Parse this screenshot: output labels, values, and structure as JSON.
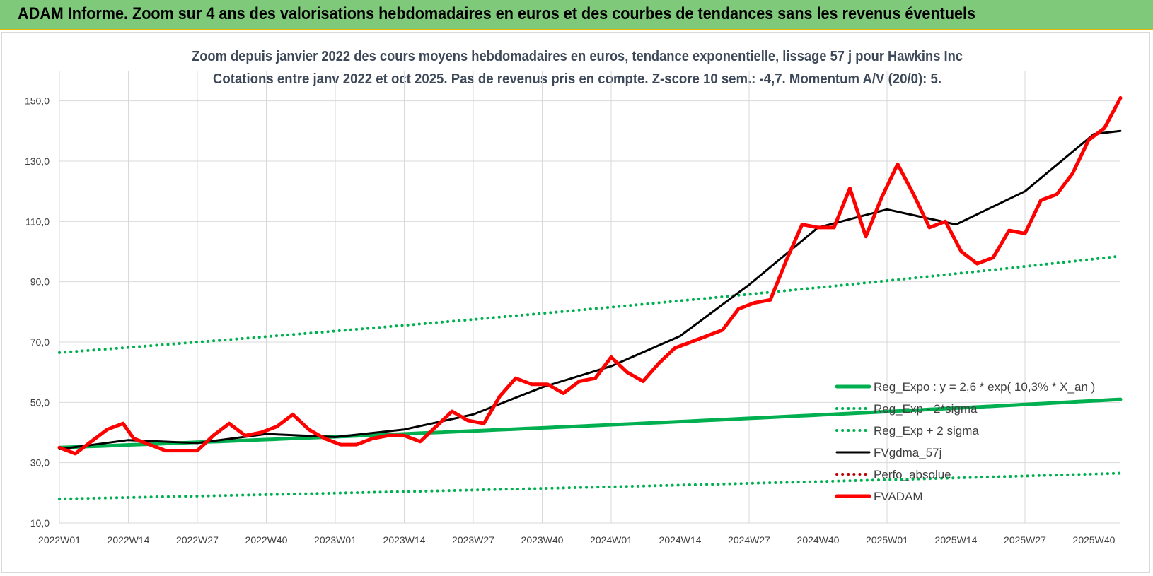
{
  "header": {
    "title": "ADAM Informe. Zoom sur 4 ans des valorisations hebdomadaires en euros et des courbes de tendances sans les revenus éventuels"
  },
  "colors": {
    "trend": "#00b050",
    "price": "#ff0000",
    "smooth": "#000000",
    "perf": "#c00000",
    "banner": "#7fc97a"
  },
  "chart_data": {
    "type": "line",
    "title": "Zoom depuis janvier 2022 des cours moyens hebdomadaires en euros, tendance exponentielle, lissage 57 j pour Hawkins Inc",
    "subtitle": "Cotations entre janv 2022 et oct 2025. Pas de revenus pris en compte. Z-score 10 sem.: -4,7.  Momentum A/V (20/0): 5.",
    "y_ticks": [
      "10,0",
      "30,0",
      "50,0",
      "70,0",
      "90,0",
      "110,0",
      "130,0",
      "150,0"
    ],
    "ylim": [
      10,
      160
    ],
    "x_tick_labels": [
      "2022W01",
      "2022W14",
      "2022W27",
      "2022W40",
      "2023W01",
      "2023W14",
      "2023W27",
      "2023W40",
      "2024W01",
      "2024W14",
      "2024W27",
      "2024W40",
      "2025W01",
      "2025W14",
      "2025W27",
      "2025W40"
    ],
    "x_range_weeks": [
      0,
      200
    ],
    "grid": "vertical and horizontal",
    "legend_position": "bottom-right",
    "series": [
      {
        "name": "Reg_Expo : y = 2,6 * exp( 10,3% * X_an )",
        "style": "solid-thick",
        "color": "#00b050",
        "x": [
          0,
          200
        ],
        "y": [
          35.0,
          51.0
        ]
      },
      {
        "name": "Reg_Exp - 2*sigma",
        "style": "dotted",
        "color": "#00b050",
        "x": [
          0,
          200
        ],
        "y": [
          18.0,
          26.5
        ]
      },
      {
        "name": "Reg_Exp + 2 sigma",
        "style": "dotted",
        "color": "#00b050",
        "x": [
          0,
          200
        ],
        "y": [
          66.5,
          98.5
        ]
      },
      {
        "name": "FVgdma_57j",
        "style": "solid",
        "color": "#000000",
        "x": [
          0,
          13,
          26,
          39,
          52,
          65,
          78,
          91,
          104,
          117,
          130,
          143,
          156,
          169,
          182,
          195,
          200
        ],
        "y": [
          34.5,
          37.5,
          36.5,
          39.5,
          38.5,
          41.0,
          46.0,
          55.0,
          62.0,
          72.0,
          89.0,
          108.0,
          114.0,
          109.0,
          120.0,
          139.0,
          140.0
        ]
      },
      {
        "name": "Perfo_absolue",
        "style": "dotted",
        "color": "#c00000",
        "x": [],
        "y": []
      },
      {
        "name": "FVADAM",
        "style": "solid-thick",
        "color": "#ff0000",
        "x": [
          0,
          3,
          6,
          9,
          12,
          14,
          17,
          20,
          23,
          26,
          29,
          32,
          35,
          38,
          41,
          44,
          47,
          50,
          53,
          56,
          59,
          62,
          65,
          68,
          71,
          74,
          77,
          80,
          83,
          86,
          89,
          92,
          95,
          98,
          101,
          104,
          107,
          110,
          113,
          116,
          119,
          122,
          125,
          128,
          131,
          134,
          137,
          140,
          143,
          146,
          149,
          152,
          155,
          158,
          161,
          164,
          167,
          170,
          173,
          176,
          179,
          182,
          185,
          188,
          191,
          194,
          197,
          200
        ],
        "y": [
          35,
          33,
          37,
          41,
          43,
          38,
          36,
          34,
          34,
          34,
          39,
          43,
          39,
          40,
          42,
          46,
          41,
          38,
          36,
          36,
          38,
          39,
          39,
          37,
          42,
          47,
          44,
          43,
          52,
          58,
          56,
          56,
          53,
          57,
          58,
          65,
          60,
          57,
          63,
          68,
          70,
          72,
          74,
          81,
          83,
          84,
          97,
          109,
          108,
          108,
          121,
          105,
          118,
          129,
          119,
          108,
          110,
          100,
          96,
          98,
          107,
          106,
          117,
          119,
          126,
          137,
          141,
          151
        ]
      }
    ]
  }
}
